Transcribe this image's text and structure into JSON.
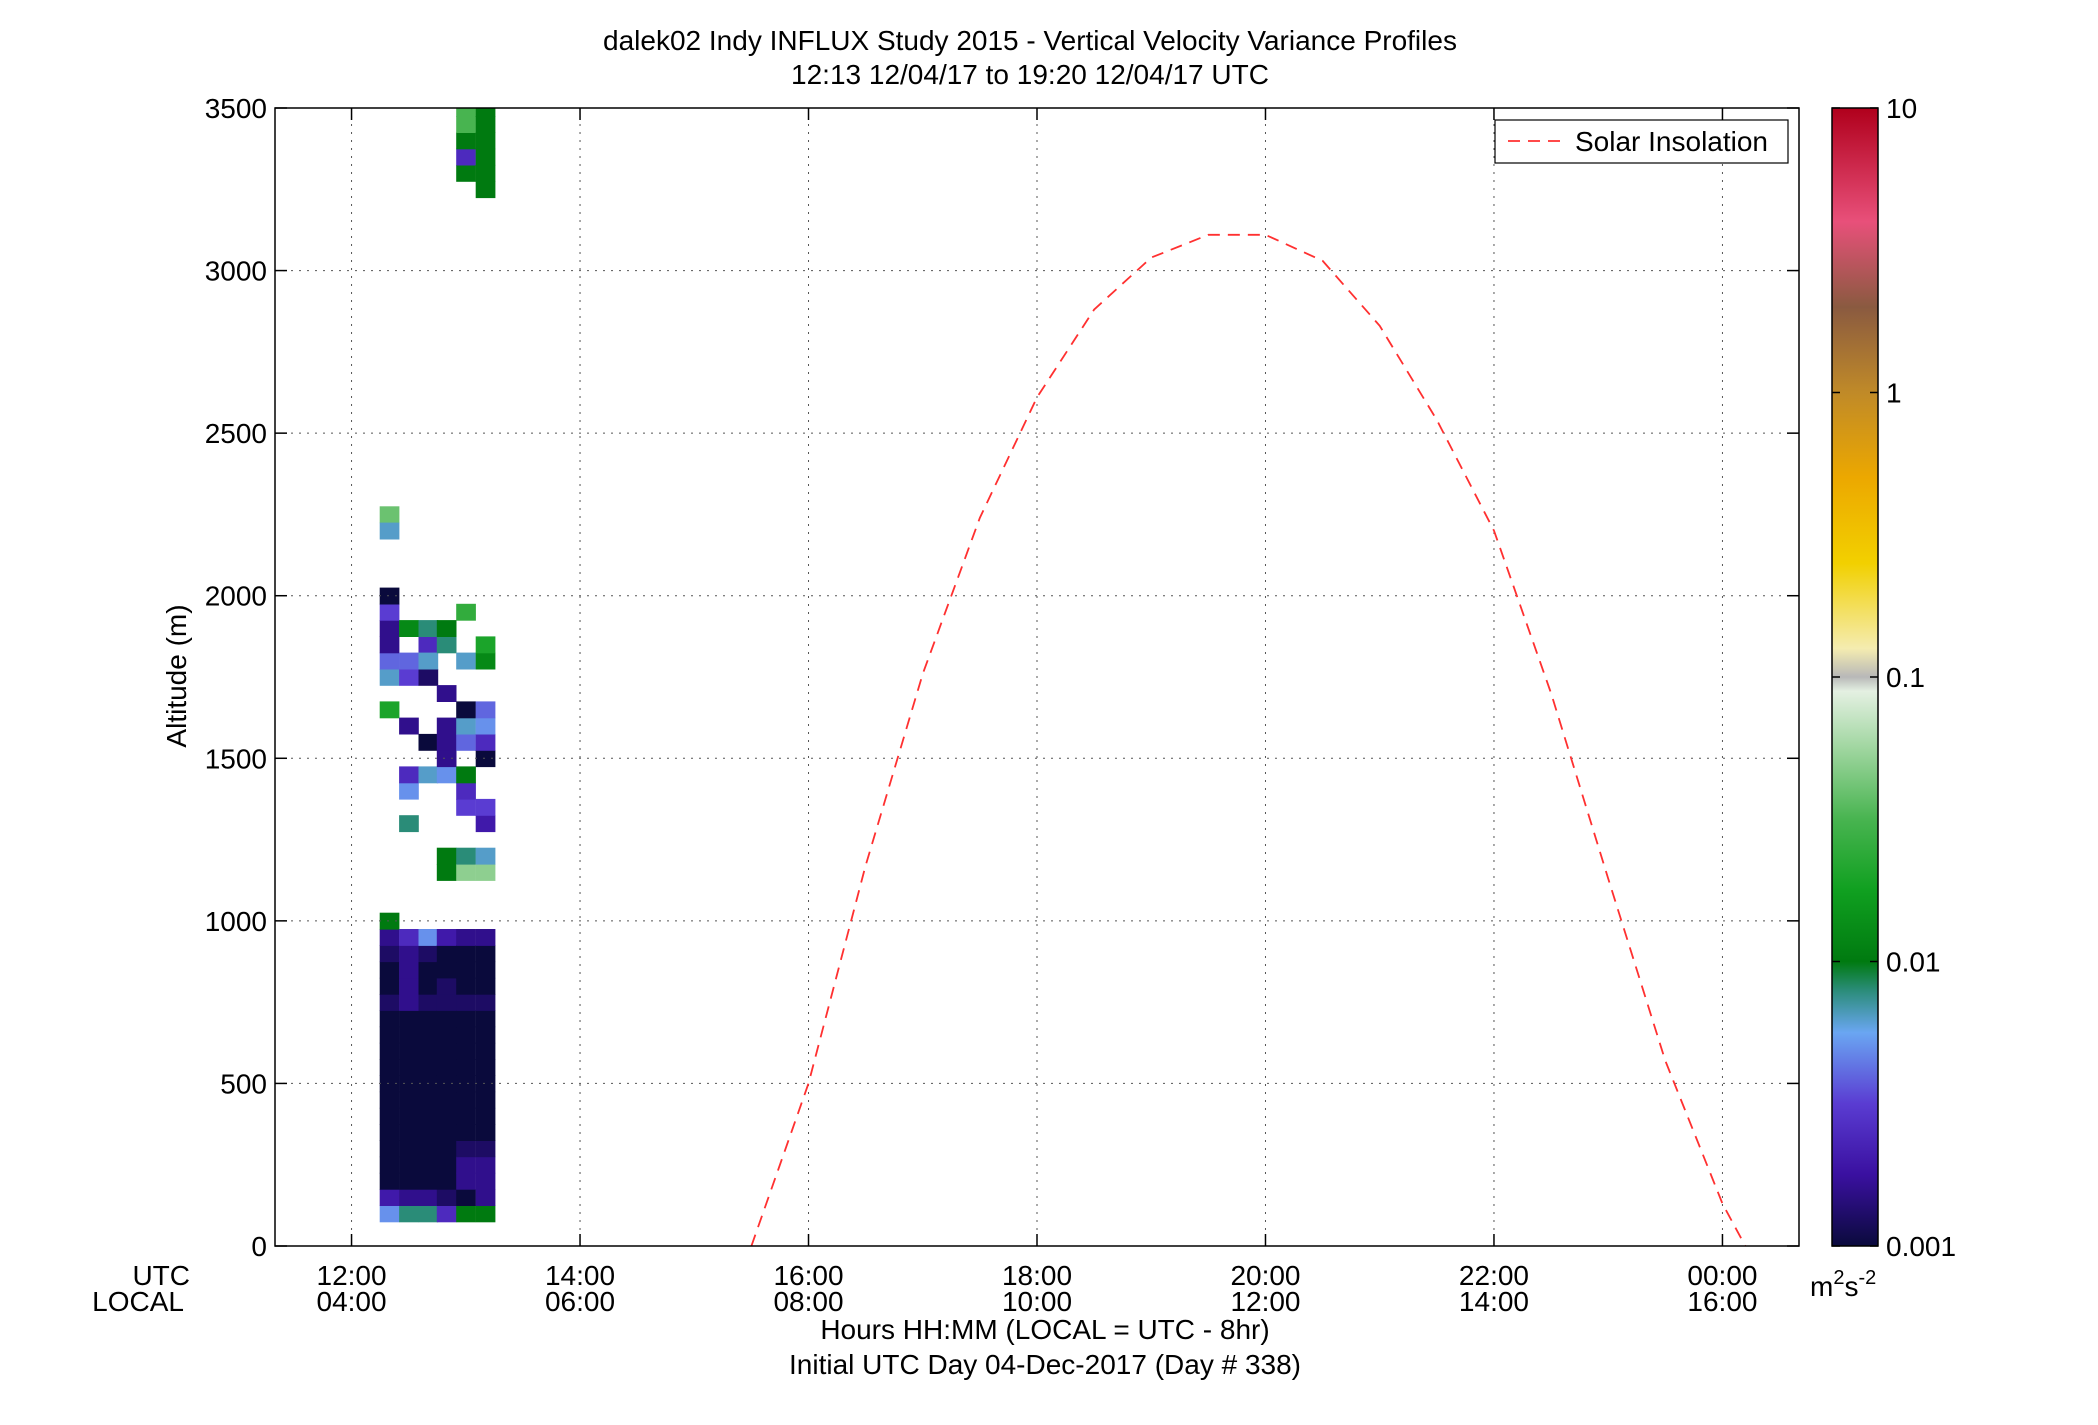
{
  "title_line1": "dalek02 Indy INFLUX Study 2015 - Vertical Velocity Variance Profiles",
  "title_line2": "12:13 12/04/17 to 19:20 12/04/17  UTC",
  "ylabel": "Altitude (m)",
  "xlabel": "Hours HH:MM  (LOCAL = UTC - 8hr)",
  "xlabel2": "Initial UTC Day 04-Dec-2017 (Day # 338)",
  "utc_label": "UTC",
  "local_label": "LOCAL",
  "legend_label": "Solar Insolation",
  "colorbar_unit": "m",
  "colorbar_unit_sup1": "2",
  "colorbar_unit_s": "s",
  "colorbar_unit_sup2": "-2",
  "chart_data": {
    "type": "heatmap",
    "title": "dalek02 Indy INFLUX Study 2015 - Vertical Velocity Variance Profiles",
    "subtitle": "12:13 12/04/17 to 19:20 12/04/17  UTC",
    "xlabel": "Hours HH:MM  (LOCAL = UTC - 8hr)",
    "ylabel": "Altitude (m)",
    "xlim_utc_hours": [
      11.33,
      24.67
    ],
    "ylim": [
      0,
      3500
    ],
    "grid": true,
    "legend_position": "top-right",
    "x_ticks": [
      {
        "utc_hours": 12,
        "utc": "12:00",
        "local": "04:00"
      },
      {
        "utc_hours": 14,
        "utc": "14:00",
        "local": "06:00"
      },
      {
        "utc_hours": 16,
        "utc": "16:00",
        "local": "08:00"
      },
      {
        "utc_hours": 18,
        "utc": "18:00",
        "local": "10:00"
      },
      {
        "utc_hours": 20,
        "utc": "20:00",
        "local": "12:00"
      },
      {
        "utc_hours": 22,
        "utc": "22:00",
        "local": "14:00"
      },
      {
        "utc_hours": 24,
        "utc": "00:00",
        "local": "16:00"
      }
    ],
    "y_ticks": [
      0,
      500,
      1000,
      1500,
      2000,
      2500,
      3000,
      3500
    ],
    "colorbar": {
      "scale": "log",
      "range": [
        0.001,
        10
      ],
      "ticks": [
        {
          "value": 0.001,
          "label": "0.001"
        },
        {
          "value": 0.01,
          "label": "0.01"
        },
        {
          "value": 0.1,
          "label": "0.1"
        },
        {
          "value": 1,
          "label": "1"
        },
        {
          "value": 10,
          "label": "10"
        }
      ],
      "unit": "m2s-2",
      "stops": [
        {
          "log10": -3.0,
          "color": "#0a0a3c"
        },
        {
          "log10": -2.75,
          "color": "#3a10a0"
        },
        {
          "log10": -2.5,
          "color": "#5a3cd2"
        },
        {
          "log10": -2.25,
          "color": "#6aa6f2"
        },
        {
          "log10": -2.1,
          "color": "#2a8c78"
        },
        {
          "log10": -2.0,
          "color": "#007a10"
        },
        {
          "log10": -1.75,
          "color": "#10a020"
        },
        {
          "log10": -1.5,
          "color": "#48b450"
        },
        {
          "log10": -1.25,
          "color": "#a0d6a0"
        },
        {
          "log10": -1.05,
          "color": "#e4f0e2"
        },
        {
          "log10": -1.0,
          "color": "#b8b8b8"
        },
        {
          "log10": -0.9,
          "color": "#f4ecb0"
        },
        {
          "log10": -0.6,
          "color": "#f2d000"
        },
        {
          "log10": -0.3,
          "color": "#eca800"
        },
        {
          "log10": 0.0,
          "color": "#c08a28"
        },
        {
          "log10": 0.3,
          "color": "#8a5a40"
        },
        {
          "log10": 0.6,
          "color": "#e8507a"
        },
        {
          "log10": 1.0,
          "color": "#b0001c"
        }
      ]
    },
    "series": [
      {
        "name": "Solar Insolation",
        "style": "dashed",
        "color": "#ff3030",
        "x_utc_hours": [
          15.5,
          16.0,
          16.5,
          17.0,
          17.5,
          18.0,
          18.5,
          19.0,
          19.5,
          20.0,
          20.5,
          21.0,
          21.5,
          22.0,
          22.5,
          23.0,
          23.5,
          24.0,
          24.2
        ],
        "y_altitude_m": [
          0,
          500,
          1170,
          1760,
          2240,
          2610,
          2880,
          3040,
          3110,
          3110,
          3030,
          2830,
          2540,
          2200,
          1700,
          1130,
          570,
          130,
          0
        ]
      }
    ],
    "cell_height_m": 50,
    "profile_time_step_hours": 0.167,
    "rows_below_1m_value_note": "Each profile row encodes log10(variance); values are estimated from the color scale",
    "profiles": [
      {
        "t": 12.33,
        "cells": [
          [
            100,
            -2.3
          ],
          [
            150,
            -2.7
          ],
          [
            200,
            -3
          ],
          [
            250,
            -3
          ],
          [
            300,
            -3
          ],
          [
            350,
            -3
          ],
          [
            400,
            -3
          ],
          [
            450,
            -3
          ],
          [
            500,
            -3
          ],
          [
            550,
            -3
          ],
          [
            600,
            -3
          ],
          [
            650,
            -3
          ],
          [
            700,
            -3
          ],
          [
            750,
            -2.9
          ],
          [
            800,
            -3
          ],
          [
            850,
            -3
          ],
          [
            900,
            -2.9
          ],
          [
            950,
            -2.8
          ],
          [
            1000,
            -2
          ],
          [
            1650,
            -1.7
          ],
          [
            1750,
            -2.2
          ],
          [
            1800,
            -2.4
          ],
          [
            1850,
            -2.8
          ],
          [
            1900,
            -2.8
          ],
          [
            1950,
            -2.5
          ],
          [
            2000,
            -3
          ],
          [
            2250,
            -1.4
          ],
          [
            2200,
            -2.2
          ]
        ]
      },
      {
        "t": 12.5,
        "cells": [
          [
            100,
            -2.1
          ],
          [
            150,
            -2.8
          ],
          [
            200,
            -3
          ],
          [
            250,
            -3
          ],
          [
            300,
            -3
          ],
          [
            350,
            -3
          ],
          [
            400,
            -3
          ],
          [
            450,
            -3
          ],
          [
            500,
            -3
          ],
          [
            550,
            -3
          ],
          [
            600,
            -3
          ],
          [
            650,
            -3
          ],
          [
            700,
            -3
          ],
          [
            750,
            -2.8
          ],
          [
            800,
            -2.8
          ],
          [
            850,
            -2.8
          ],
          [
            900,
            -2.8
          ],
          [
            950,
            -2.6
          ],
          [
            1300,
            -2.1
          ],
          [
            1400,
            -2.3
          ],
          [
            1450,
            -2.6
          ],
          [
            1600,
            -2.8
          ],
          [
            1750,
            -2.5
          ],
          [
            1800,
            -2.4
          ],
          [
            1900,
            -1.9
          ]
        ]
      },
      {
        "t": 12.67,
        "cells": [
          [
            100,
            -2.1
          ],
          [
            150,
            -2.8
          ],
          [
            200,
            -3
          ],
          [
            250,
            -3
          ],
          [
            300,
            -3
          ],
          [
            350,
            -3
          ],
          [
            400,
            -3
          ],
          [
            450,
            -3
          ],
          [
            500,
            -3
          ],
          [
            550,
            -3
          ],
          [
            600,
            -3
          ],
          [
            650,
            -3
          ],
          [
            700,
            -3
          ],
          [
            750,
            -2.9
          ],
          [
            800,
            -3
          ],
          [
            850,
            -3
          ],
          [
            900,
            -2.9
          ],
          [
            950,
            -2.3
          ],
          [
            1450,
            -2.2
          ],
          [
            1550,
            -3
          ],
          [
            1750,
            -2.9
          ],
          [
            1850,
            -2.6
          ],
          [
            1800,
            -2.2
          ],
          [
            1900,
            -2.1
          ]
        ]
      },
      {
        "t": 12.83,
        "cells": [
          [
            100,
            -2.6
          ],
          [
            150,
            -2.9
          ],
          [
            200,
            -3
          ],
          [
            250,
            -3
          ],
          [
            300,
            -3
          ],
          [
            350,
            -3
          ],
          [
            400,
            -3
          ],
          [
            450,
            -3
          ],
          [
            500,
            -3
          ],
          [
            550,
            -3
          ],
          [
            600,
            -3
          ],
          [
            650,
            -3
          ],
          [
            700,
            -3
          ],
          [
            750,
            -2.9
          ],
          [
            800,
            -2.9
          ],
          [
            850,
            -3
          ],
          [
            900,
            -3
          ],
          [
            950,
            -2.7
          ],
          [
            1150,
            -2.0
          ],
          [
            1200,
            -2.0
          ],
          [
            1450,
            -2.3
          ],
          [
            1500,
            -2.8
          ],
          [
            1550,
            -2.8
          ],
          [
            1600,
            -2.8
          ],
          [
            1700,
            -2.8
          ],
          [
            1850,
            -2.1
          ],
          [
            1900,
            -2.0
          ]
        ]
      },
      {
        "t": 13.0,
        "cells": [
          [
            100,
            -2.0
          ],
          [
            150,
            -3
          ],
          [
            200,
            -2.8
          ],
          [
            250,
            -2.8
          ],
          [
            300,
            -2.9
          ],
          [
            350,
            -3
          ],
          [
            400,
            -3
          ],
          [
            450,
            -3
          ],
          [
            500,
            -3
          ],
          [
            550,
            -3
          ],
          [
            600,
            -3
          ],
          [
            650,
            -3
          ],
          [
            700,
            -3
          ],
          [
            750,
            -2.9
          ],
          [
            800,
            -3
          ],
          [
            850,
            -3
          ],
          [
            900,
            -3
          ],
          [
            950,
            -2.8
          ],
          [
            1150,
            -1.3
          ],
          [
            1200,
            -2.1
          ],
          [
            1350,
            -2.5
          ],
          [
            1400,
            -2.6
          ],
          [
            1450,
            -2.0
          ],
          [
            1550,
            -2.4
          ],
          [
            1600,
            -2.2
          ],
          [
            1650,
            -3
          ],
          [
            1800,
            -2.2
          ],
          [
            1950,
            -1.6
          ],
          [
            3300,
            -2.0
          ],
          [
            3350,
            -2.6
          ],
          [
            3400,
            -2.0
          ],
          [
            3450,
            -1.5
          ],
          [
            3500,
            -1.5
          ]
        ]
      },
      {
        "t": 13.17,
        "cells": [
          [
            100,
            -2.0
          ],
          [
            150,
            -2.8
          ],
          [
            200,
            -2.8
          ],
          [
            250,
            -2.8
          ],
          [
            300,
            -2.9
          ],
          [
            350,
            -3
          ],
          [
            400,
            -3
          ],
          [
            450,
            -3
          ],
          [
            500,
            -3
          ],
          [
            550,
            -3
          ],
          [
            600,
            -3
          ],
          [
            650,
            -3
          ],
          [
            700,
            -3
          ],
          [
            750,
            -2.9
          ],
          [
            800,
            -3
          ],
          [
            850,
            -3
          ],
          [
            900,
            -3
          ],
          [
            950,
            -2.8
          ],
          [
            1150,
            -1.3
          ],
          [
            1200,
            -2.2
          ],
          [
            1300,
            -2.7
          ],
          [
            1350,
            -2.5
          ],
          [
            1500,
            -3
          ],
          [
            1550,
            -2.6
          ],
          [
            1600,
            -2.3
          ],
          [
            1650,
            -2.4
          ],
          [
            1800,
            -1.9
          ],
          [
            1850,
            -1.7
          ],
          [
            3250,
            -2.0
          ],
          [
            3300,
            -2.0
          ],
          [
            3350,
            -2.0
          ],
          [
            3400,
            -2.0
          ],
          [
            3450,
            -2.0
          ],
          [
            3500,
            -2.0
          ]
        ]
      }
    ]
  }
}
